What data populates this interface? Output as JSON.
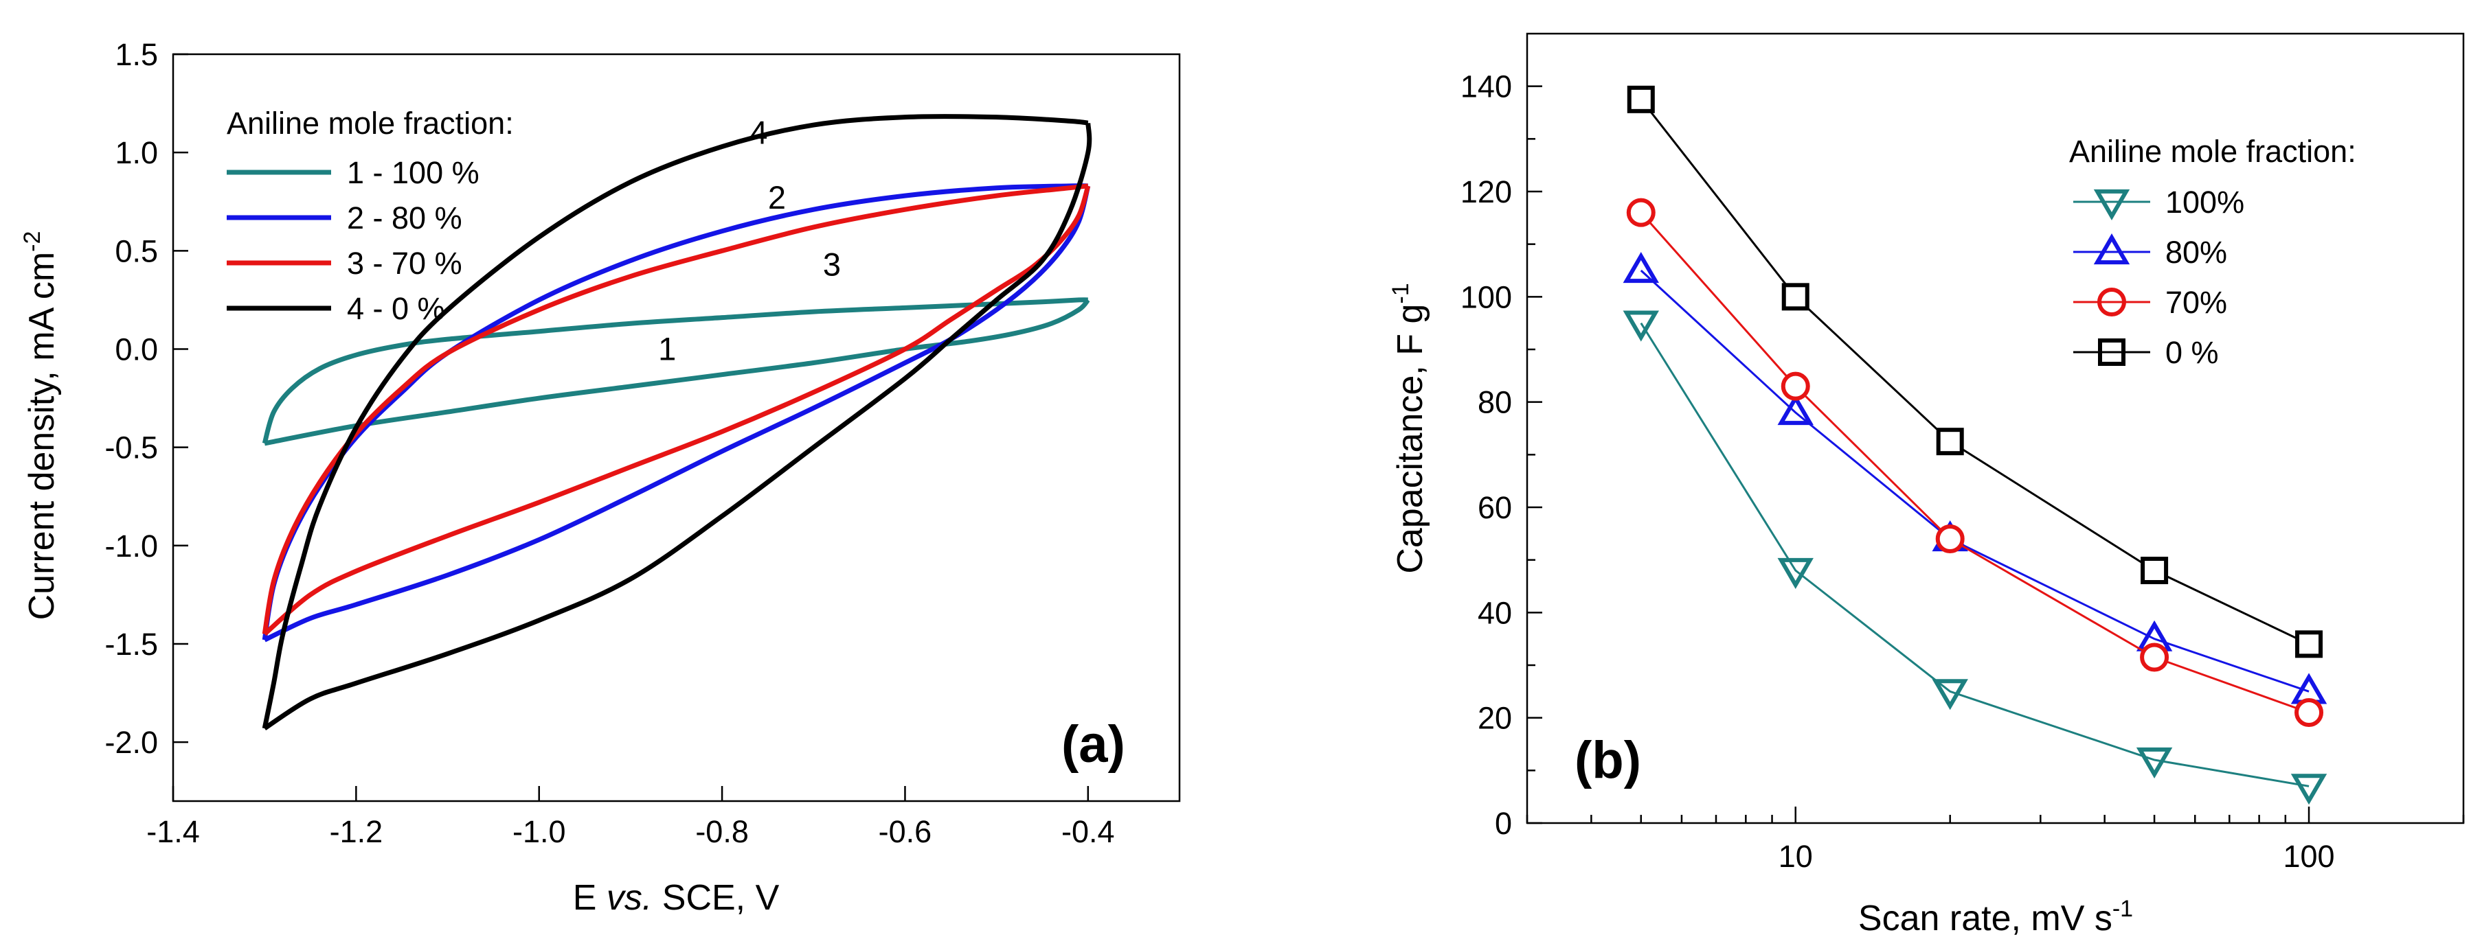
{
  "colors": {
    "teal": "#1d8080",
    "blue": "#1414e6",
    "red": "#e61414",
    "black": "#000000"
  },
  "chart_data": [
    {
      "panel": "(a)",
      "type": "line",
      "xlabel_parts": [
        "E ",
        "vs.",
        " SCE, V"
      ],
      "ylabel": "Current density, mA cm",
      "ylabel_unit_sup": "-2",
      "xlim": [
        -1.4,
        -0.3
      ],
      "ylim": [
        -2.3,
        1.5
      ],
      "xticks": [
        -1.4,
        -1.2,
        -1.0,
        -0.8,
        -0.6,
        -0.4
      ],
      "xtick_labels": [
        "-1.4",
        "-1.2",
        "-1.0",
        "-0.8",
        "-0.6",
        "-0.4"
      ],
      "yticks": [
        -2.0,
        -1.5,
        -1.0,
        -0.5,
        0.0,
        0.5,
        1.0,
        1.5
      ],
      "ytick_labels": [
        "-2.0",
        "-1.5",
        "-1.0",
        "-0.5",
        "0.0",
        "0.5",
        "1.0",
        "1.5"
      ],
      "legend_title": "Aniline mole fraction:",
      "legend_location": "top-left",
      "series": [
        {
          "name": "1 - 100 %",
          "label": "1",
          "color_key": "teal",
          "label_pos": [
            -0.86,
            0.0
          ],
          "upper": [
            [
              -1.3,
              -0.48
            ],
            [
              -1.29,
              -0.32
            ],
            [
              -1.27,
              -0.2
            ],
            [
              -1.24,
              -0.1
            ],
            [
              -1.2,
              -0.03
            ],
            [
              -1.15,
              0.02
            ],
            [
              -1.1,
              0.05
            ],
            [
              -1.0,
              0.09
            ],
            [
              -0.9,
              0.13
            ],
            [
              -0.8,
              0.16
            ],
            [
              -0.7,
              0.19
            ],
            [
              -0.6,
              0.21
            ],
            [
              -0.5,
              0.23
            ],
            [
              -0.45,
              0.24
            ],
            [
              -0.41,
              0.25
            ],
            [
              -0.4,
              0.25
            ]
          ],
          "lower": [
            [
              -0.4,
              0.25
            ],
            [
              -0.41,
              0.2
            ],
            [
              -0.44,
              0.13
            ],
            [
              -0.48,
              0.08
            ],
            [
              -0.53,
              0.04
            ],
            [
              -0.6,
              0.0
            ],
            [
              -0.7,
              -0.07
            ],
            [
              -0.8,
              -0.13
            ],
            [
              -0.9,
              -0.19
            ],
            [
              -1.0,
              -0.25
            ],
            [
              -1.1,
              -0.32
            ],
            [
              -1.2,
              -0.39
            ],
            [
              -1.3,
              -0.48
            ]
          ]
        },
        {
          "name": "2 - 80 %",
          "label": "2",
          "color_key": "blue",
          "label_pos": [
            -0.74,
            0.77
          ],
          "upper": [
            [
              -1.3,
              -1.48
            ],
            [
              -1.29,
              -1.2
            ],
            [
              -1.27,
              -0.95
            ],
            [
              -1.24,
              -0.7
            ],
            [
              -1.2,
              -0.45
            ],
            [
              -1.15,
              -0.22
            ],
            [
              -1.1,
              -0.02
            ],
            [
              -1.0,
              0.25
            ],
            [
              -0.9,
              0.45
            ],
            [
              -0.8,
              0.6
            ],
            [
              -0.7,
              0.71
            ],
            [
              -0.6,
              0.78
            ],
            [
              -0.5,
              0.82
            ],
            [
              -0.42,
              0.83
            ],
            [
              -0.4,
              0.83
            ]
          ],
          "lower": [
            [
              -0.4,
              0.83
            ],
            [
              -0.41,
              0.65
            ],
            [
              -0.43,
              0.5
            ],
            [
              -0.46,
              0.35
            ],
            [
              -0.5,
              0.2
            ],
            [
              -0.55,
              0.05
            ],
            [
              -0.6,
              -0.07
            ],
            [
              -0.7,
              -0.3
            ],
            [
              -0.8,
              -0.52
            ],
            [
              -0.9,
              -0.75
            ],
            [
              -1.0,
              -0.97
            ],
            [
              -1.1,
              -1.15
            ],
            [
              -1.2,
              -1.3
            ],
            [
              -1.25,
              -1.37
            ],
            [
              -1.3,
              -1.48
            ]
          ]
        },
        {
          "name": "3 - 70 %",
          "label": "3",
          "color_key": "red",
          "label_pos": [
            -0.68,
            0.43
          ],
          "upper": [
            [
              -1.3,
              -1.45
            ],
            [
              -1.29,
              -1.18
            ],
            [
              -1.27,
              -0.93
            ],
            [
              -1.24,
              -0.68
            ],
            [
              -1.2,
              -0.43
            ],
            [
              -1.15,
              -0.2
            ],
            [
              -1.1,
              -0.02
            ],
            [
              -1.0,
              0.2
            ],
            [
              -0.9,
              0.37
            ],
            [
              -0.8,
              0.5
            ],
            [
              -0.7,
              0.62
            ],
            [
              -0.6,
              0.71
            ],
            [
              -0.5,
              0.78
            ],
            [
              -0.42,
              0.82
            ],
            [
              -0.4,
              0.83
            ]
          ],
          "lower": [
            [
              -0.4,
              0.83
            ],
            [
              -0.41,
              0.68
            ],
            [
              -0.43,
              0.55
            ],
            [
              -0.46,
              0.42
            ],
            [
              -0.5,
              0.3
            ],
            [
              -0.55,
              0.15
            ],
            [
              -0.6,
              0.0
            ],
            [
              -0.7,
              -0.22
            ],
            [
              -0.8,
              -0.42
            ],
            [
              -0.9,
              -0.6
            ],
            [
              -1.0,
              -0.78
            ],
            [
              -1.1,
              -0.95
            ],
            [
              -1.2,
              -1.13
            ],
            [
              -1.25,
              -1.25
            ],
            [
              -1.3,
              -1.45
            ]
          ]
        },
        {
          "name": "4 - 0 %",
          "label": "4",
          "color_key": "black",
          "label_pos": [
            -0.76,
            1.1
          ],
          "upper": [
            [
              -1.3,
              -1.93
            ],
            [
              -1.29,
              -1.7
            ],
            [
              -1.28,
              -1.45
            ],
            [
              -1.26,
              -1.1
            ],
            [
              -1.24,
              -0.8
            ],
            [
              -1.2,
              -0.4
            ],
            [
              -1.15,
              -0.05
            ],
            [
              -1.1,
              0.2
            ],
            [
              -1.0,
              0.57
            ],
            [
              -0.9,
              0.85
            ],
            [
              -0.8,
              1.03
            ],
            [
              -0.7,
              1.14
            ],
            [
              -0.6,
              1.18
            ],
            [
              -0.5,
              1.18
            ],
            [
              -0.42,
              1.16
            ],
            [
              -0.4,
              1.15
            ]
          ],
          "lower": [
            [
              -0.4,
              1.15
            ],
            [
              -0.4,
              1.0
            ],
            [
              -0.42,
              0.7
            ],
            [
              -0.45,
              0.45
            ],
            [
              -0.5,
              0.25
            ],
            [
              -0.55,
              0.05
            ],
            [
              -0.6,
              -0.15
            ],
            [
              -0.7,
              -0.5
            ],
            [
              -0.8,
              -0.85
            ],
            [
              -0.9,
              -1.17
            ],
            [
              -1.0,
              -1.38
            ],
            [
              -1.1,
              -1.55
            ],
            [
              -1.2,
              -1.7
            ],
            [
              -1.25,
              -1.78
            ],
            [
              -1.3,
              -1.93
            ]
          ]
        }
      ]
    },
    {
      "panel": "(b)",
      "type": "line",
      "xscale": "log",
      "xlabel": "Scan rate, mV s",
      "xlabel_unit_sup": "-1",
      "ylabel": "Capacitance,  F g",
      "ylabel_unit_sup": "-1",
      "xlim": [
        3,
        200
      ],
      "ylim": [
        0,
        150
      ],
      "xticks": [
        10,
        100
      ],
      "xtick_labels": [
        "10",
        "100"
      ],
      "yticks": [
        0,
        20,
        40,
        60,
        80,
        100,
        120,
        140
      ],
      "ytick_labels": [
        "0",
        "20",
        "40",
        "60",
        "80",
        "100",
        "120",
        "140"
      ],
      "legend_title": "Aniline mole fraction:",
      "legend_location": "top-right",
      "x": [
        5,
        10,
        20,
        50,
        100
      ],
      "series": [
        {
          "name": "100%",
          "marker": "triangle-down",
          "color_key": "teal",
          "values": [
            95,
            48,
            25,
            12,
            7
          ]
        },
        {
          "name": "80%",
          "marker": "triangle-up",
          "color_key": "blue",
          "values": [
            105,
            78,
            54,
            35,
            25
          ]
        },
        {
          "name": "70%",
          "marker": "circle",
          "color_key": "red",
          "values": [
            116,
            83,
            54,
            31.5,
            21
          ]
        },
        {
          "name": "0 %",
          "marker": "square",
          "color_key": "black",
          "values": [
            137.5,
            100,
            72.5,
            48,
            34
          ]
        }
      ]
    }
  ]
}
